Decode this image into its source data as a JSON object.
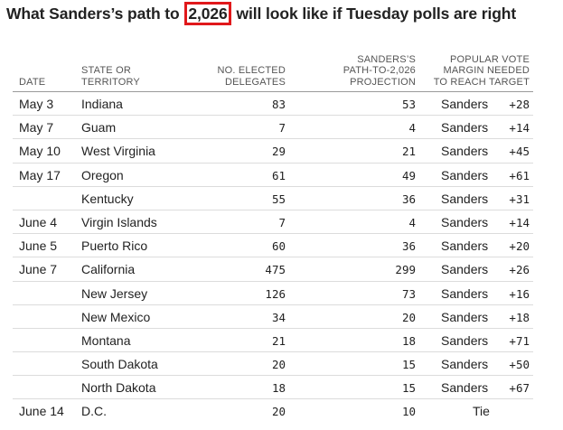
{
  "title_before": "What Sanders’s path to ",
  "title_highlight": "2,026",
  "title_after": " will look like if Tuesday polls are right",
  "headers": {
    "date": "DATE",
    "state_line1": "STATE OR",
    "state_line2": "TERRITORY",
    "delegates_line1": "NO. ELECTED",
    "delegates_line2": "DELEGATES",
    "projection_line1": "SANDERS’S",
    "projection_line2": "PATH-TO-2,026",
    "projection_line3": "PROJECTION",
    "margin_line1": "POPULAR VOTE",
    "margin_line2": "MARGIN NEEDED",
    "margin_line3": "TO REACH TARGET"
  },
  "rows": [
    {
      "date": "May 3",
      "state": "Indiana",
      "delegates": "83",
      "projection": "53",
      "winner": "Sanders",
      "margin": "+28"
    },
    {
      "date": "May 7",
      "state": "Guam",
      "delegates": "7",
      "projection": "4",
      "winner": "Sanders",
      "margin": "+14"
    },
    {
      "date": "May 10",
      "state": "West Virginia",
      "delegates": "29",
      "projection": "21",
      "winner": "Sanders",
      "margin": "+45"
    },
    {
      "date": "May 17",
      "state": "Oregon",
      "delegates": "61",
      "projection": "49",
      "winner": "Sanders",
      "margin": "+61"
    },
    {
      "date": "",
      "state": "Kentucky",
      "delegates": "55",
      "projection": "36",
      "winner": "Sanders",
      "margin": "+31"
    },
    {
      "date": "June 4",
      "state": "Virgin Islands",
      "delegates": "7",
      "projection": "4",
      "winner": "Sanders",
      "margin": "+14"
    },
    {
      "date": "June 5",
      "state": "Puerto Rico",
      "delegates": "60",
      "projection": "36",
      "winner": "Sanders",
      "margin": "+20"
    },
    {
      "date": "June 7",
      "state": "California",
      "delegates": "475",
      "projection": "299",
      "winner": "Sanders",
      "margin": "+26"
    },
    {
      "date": "",
      "state": "New Jersey",
      "delegates": "126",
      "projection": "73",
      "winner": "Sanders",
      "margin": "+16"
    },
    {
      "date": "",
      "state": "New Mexico",
      "delegates": "34",
      "projection": "20",
      "winner": "Sanders",
      "margin": "+18"
    },
    {
      "date": "",
      "state": "Montana",
      "delegates": "21",
      "projection": "18",
      "winner": "Sanders",
      "margin": "+71"
    },
    {
      "date": "",
      "state": "South Dakota",
      "delegates": "20",
      "projection": "15",
      "winner": "Sanders",
      "margin": "+50"
    },
    {
      "date": "",
      "state": "North Dakota",
      "delegates": "18",
      "projection": "15",
      "winner": "Sanders",
      "margin": "+67"
    },
    {
      "date": "June 14",
      "state": "D.C.",
      "delegates": "20",
      "projection": "10",
      "winner": "Tie",
      "margin": ""
    }
  ],
  "colors": {
    "highlight_border": "#e0181b",
    "text": "#222222",
    "header_text": "#555555"
  }
}
